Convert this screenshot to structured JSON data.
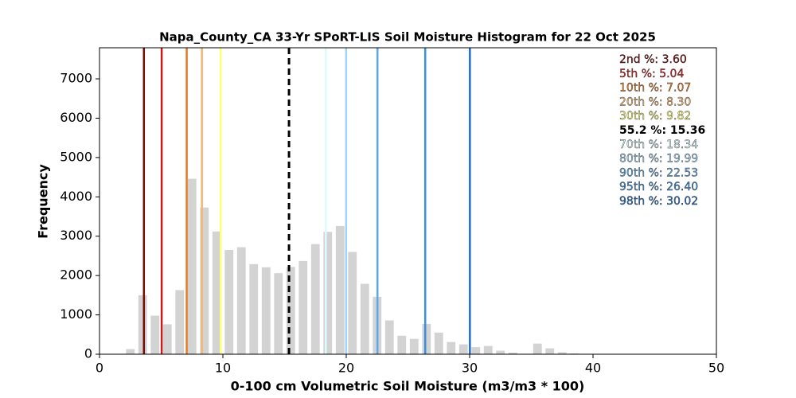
{
  "chart_data": {
    "type": "histogram",
    "title": "Napa_County_CA 33-Yr SPoRT-LIS Soil Moisture Histogram for 22 Oct 2025",
    "x_label": "0-100 cm Volumetric Soil Moisture (m3/m3 * 100)",
    "y_label": "Frequency",
    "bins": [
      2,
      3,
      4,
      5,
      6,
      7,
      8,
      9,
      10,
      11,
      12,
      13,
      14,
      15,
      16,
      17,
      18,
      19,
      20,
      21,
      22,
      23,
      24,
      25,
      26,
      27,
      28,
      29,
      30,
      31,
      32,
      33,
      34,
      35,
      36,
      37,
      38,
      39,
      40
    ],
    "values": [
      130,
      1500,
      980,
      760,
      1630,
      4460,
      3730,
      3120,
      2650,
      2720,
      2290,
      2210,
      2060,
      2220,
      2370,
      2800,
      3110,
      3260,
      2600,
      1790,
      1460,
      860,
      470,
      390,
      770,
      550,
      310,
      250,
      180,
      210,
      90,
      40,
      10,
      270,
      150,
      50,
      20,
      5
    ],
    "color": "#d3d3d3",
    "xlim": [
      0,
      50
    ],
    "xticks": [
      0,
      10,
      20,
      30,
      40,
      50
    ],
    "ylim": [
      0,
      7790
    ],
    "yticks": [
      0,
      1000,
      2000,
      3000,
      4000,
      5000,
      6000,
      7000
    ],
    "reference_lines": [
      {
        "text": "2nd %: 3.60",
        "value": 3.6,
        "color": "#7a0a0a",
        "style": "solid"
      },
      {
        "text": "5th %: 5.04",
        "value": 5.04,
        "color": "#cc1a1a",
        "style": "solid"
      },
      {
        "text": "10th %: 7.07",
        "value": 7.07,
        "color": "#e67a22",
        "style": "solid"
      },
      {
        "text": "20th %: 8.30",
        "value": 8.3,
        "color": "#f5b570",
        "style": "solid"
      },
      {
        "text": "30th %: 9.82",
        "value": 9.82,
        "color": "#ffff70",
        "style": "solid"
      },
      {
        "text": "55.2 %: 15.36",
        "value": 15.36,
        "color": "#000000",
        "style": "dashed"
      },
      {
        "text": "70th %: 18.34",
        "value": 18.34,
        "color": "#dcfbff",
        "style": "solid"
      },
      {
        "text": "80th %: 19.99",
        "value": 19.99,
        "color": "#a4d2f4",
        "style": "solid"
      },
      {
        "text": "90th %: 22.53",
        "value": 22.53,
        "color": "#5ca8ea",
        "style": "solid"
      },
      {
        "text": "95th %: 26.40",
        "value": 26.4,
        "color": "#3a90dc",
        "style": "solid"
      },
      {
        "text": "98th %: 30.02",
        "value": 30.02,
        "color": "#1f6ccc",
        "style": "solid"
      }
    ]
  }
}
